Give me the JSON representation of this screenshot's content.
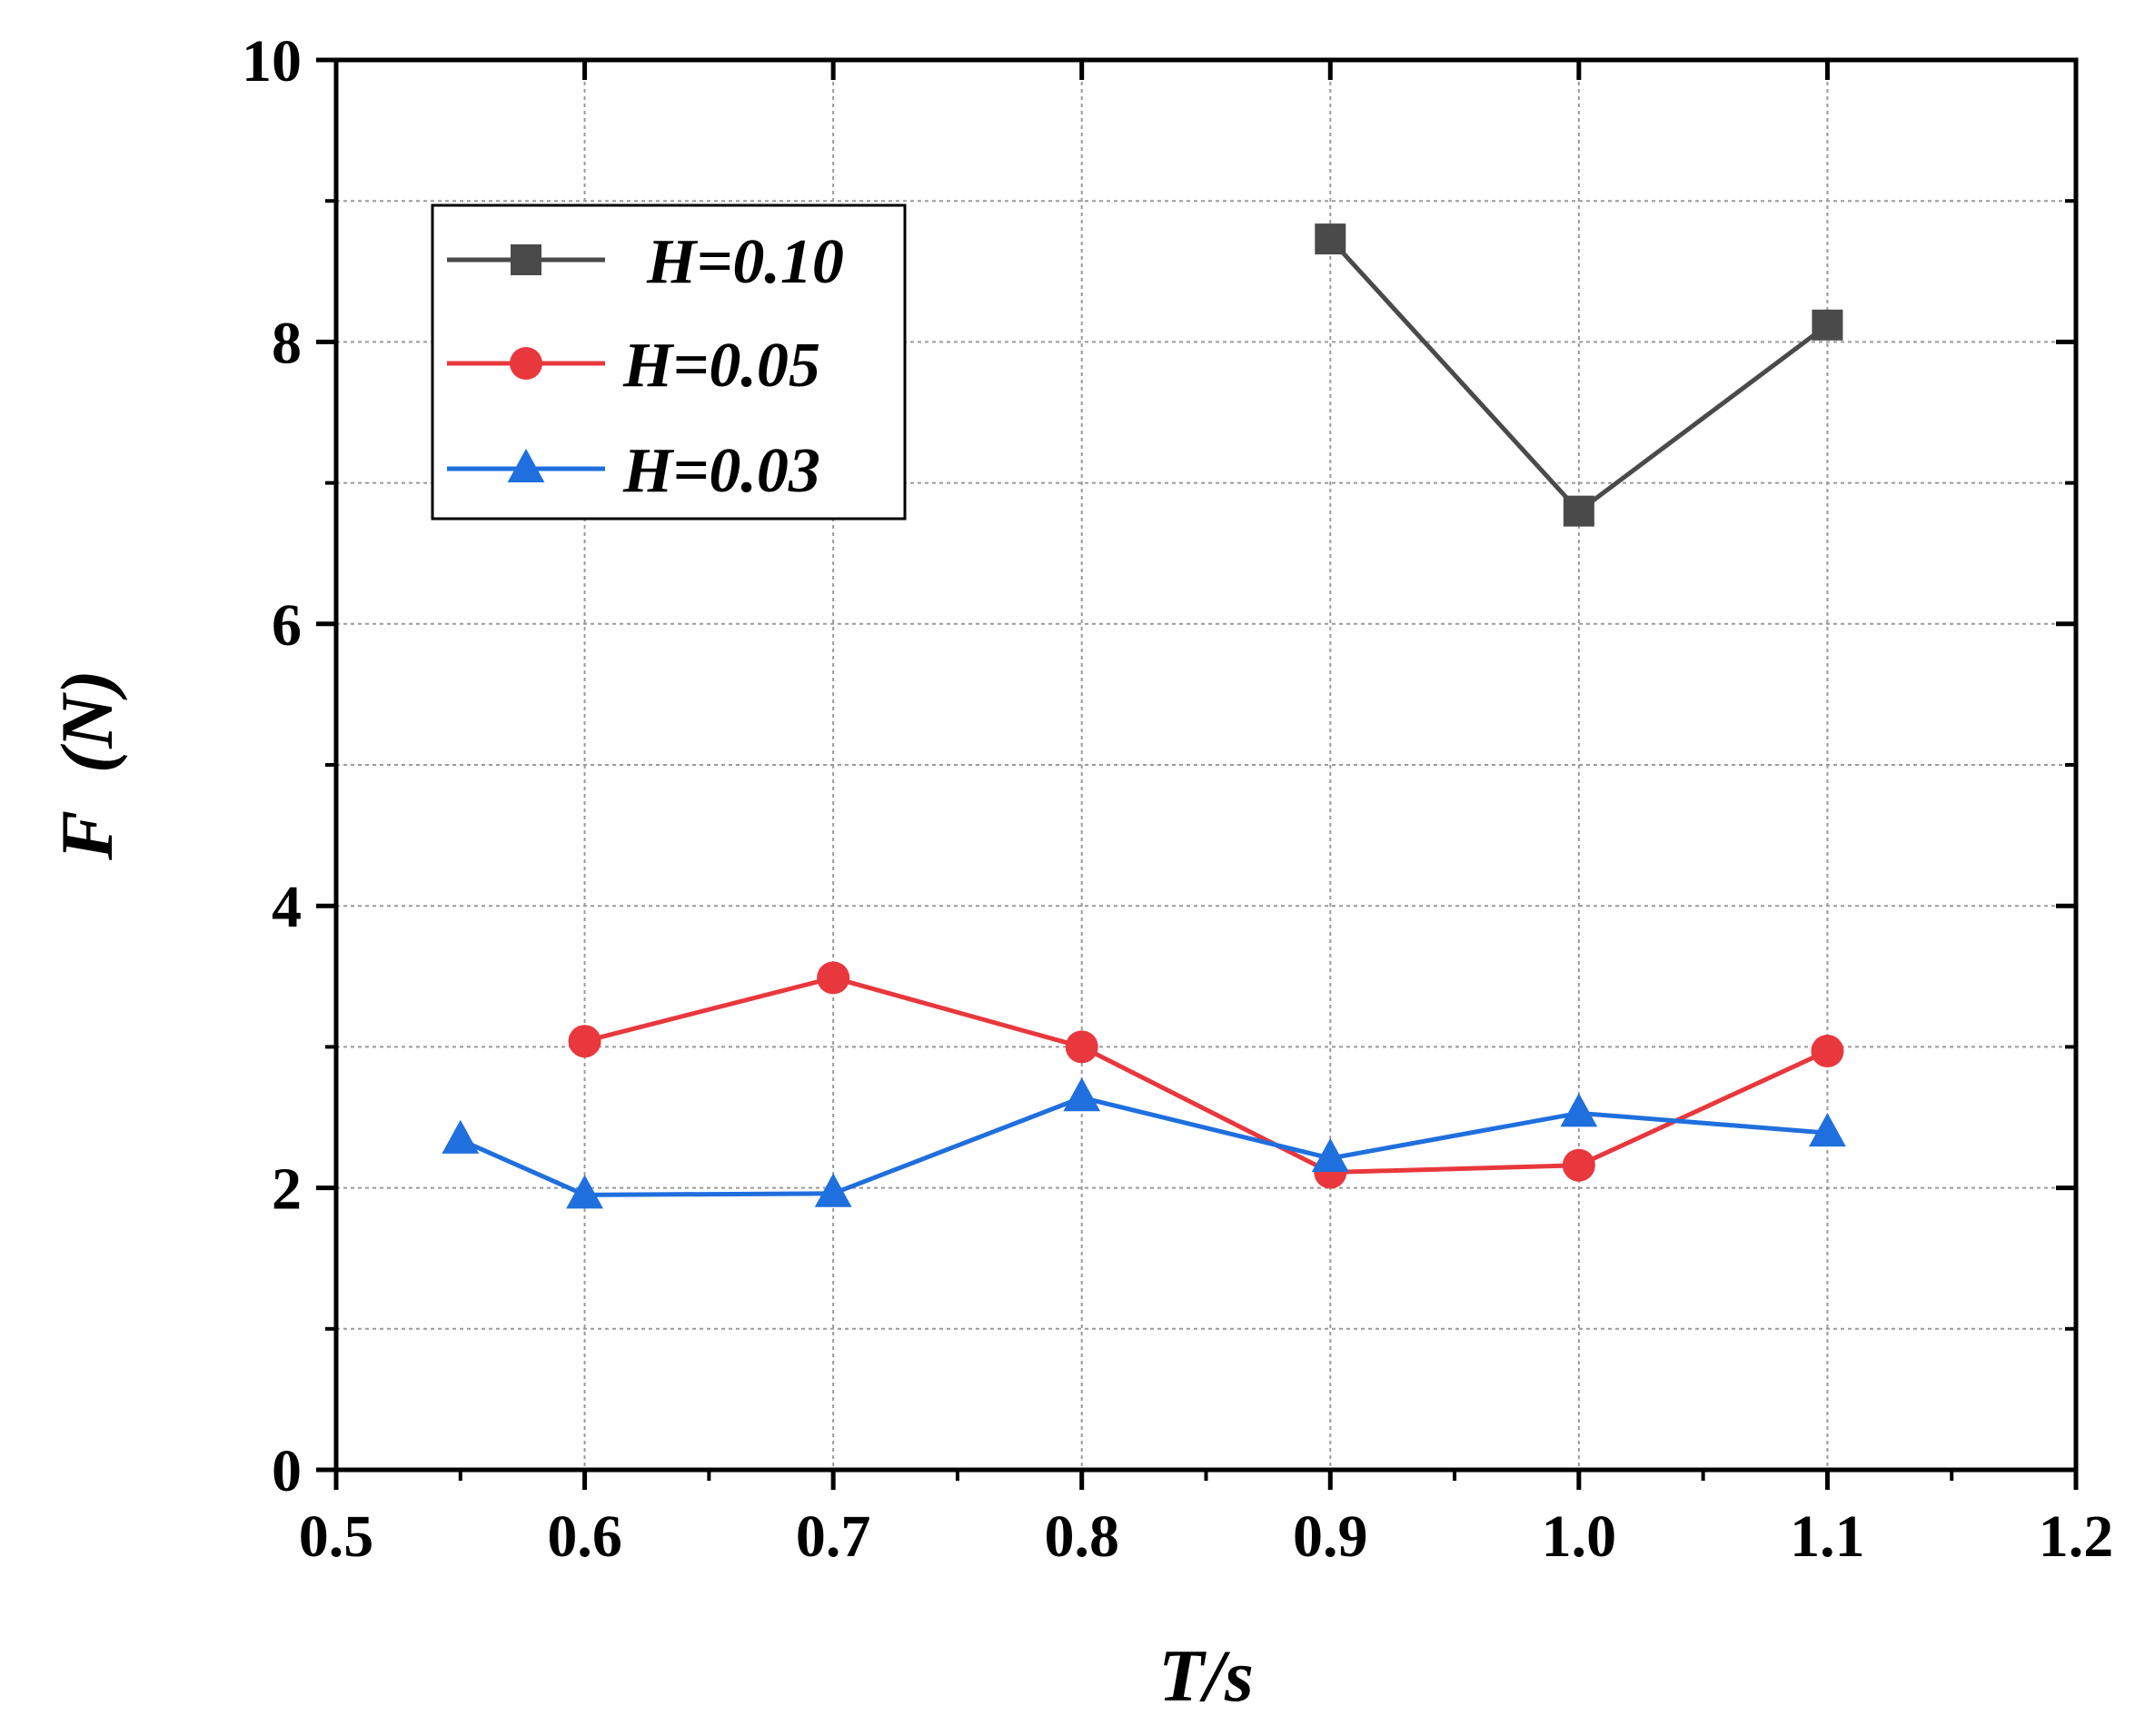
{
  "chart_data": {
    "type": "line",
    "title": "",
    "xlabel": "T/s",
    "ylabel": "F  (N)",
    "xlim": [
      0.5,
      1.2
    ],
    "ylim": [
      0,
      10
    ],
    "x_ticks": [
      "0.5",
      "0.6",
      "0.7",
      "0.8",
      "0.9",
      "1.0",
      "1.1",
      "1.2"
    ],
    "y_ticks": [
      "0",
      "2",
      "4",
      "6",
      "8",
      "10"
    ],
    "grid": true,
    "legend_position": "top-left",
    "series": [
      {
        "name": "H=0.10",
        "color": "#4a4a4a",
        "marker": "square",
        "x": [
          0.9,
          1.0,
          1.1
        ],
        "y": [
          8.73,
          6.8,
          8.12
        ]
      },
      {
        "name": "H=0.05",
        "color": "#e8383d",
        "marker": "circle",
        "x": [
          0.6,
          0.7,
          0.8,
          0.9,
          1.0,
          1.1
        ],
        "y": [
          3.04,
          3.49,
          3.0,
          2.11,
          2.16,
          2.97
        ]
      },
      {
        "name": "H=0.03",
        "color": "#1f6fde",
        "marker": "triangle",
        "x": [
          0.55,
          0.6,
          0.7,
          0.8,
          0.9,
          1.0,
          1.1
        ],
        "y": [
          2.34,
          1.95,
          1.96,
          2.64,
          2.21,
          2.53,
          2.39
        ]
      }
    ]
  }
}
